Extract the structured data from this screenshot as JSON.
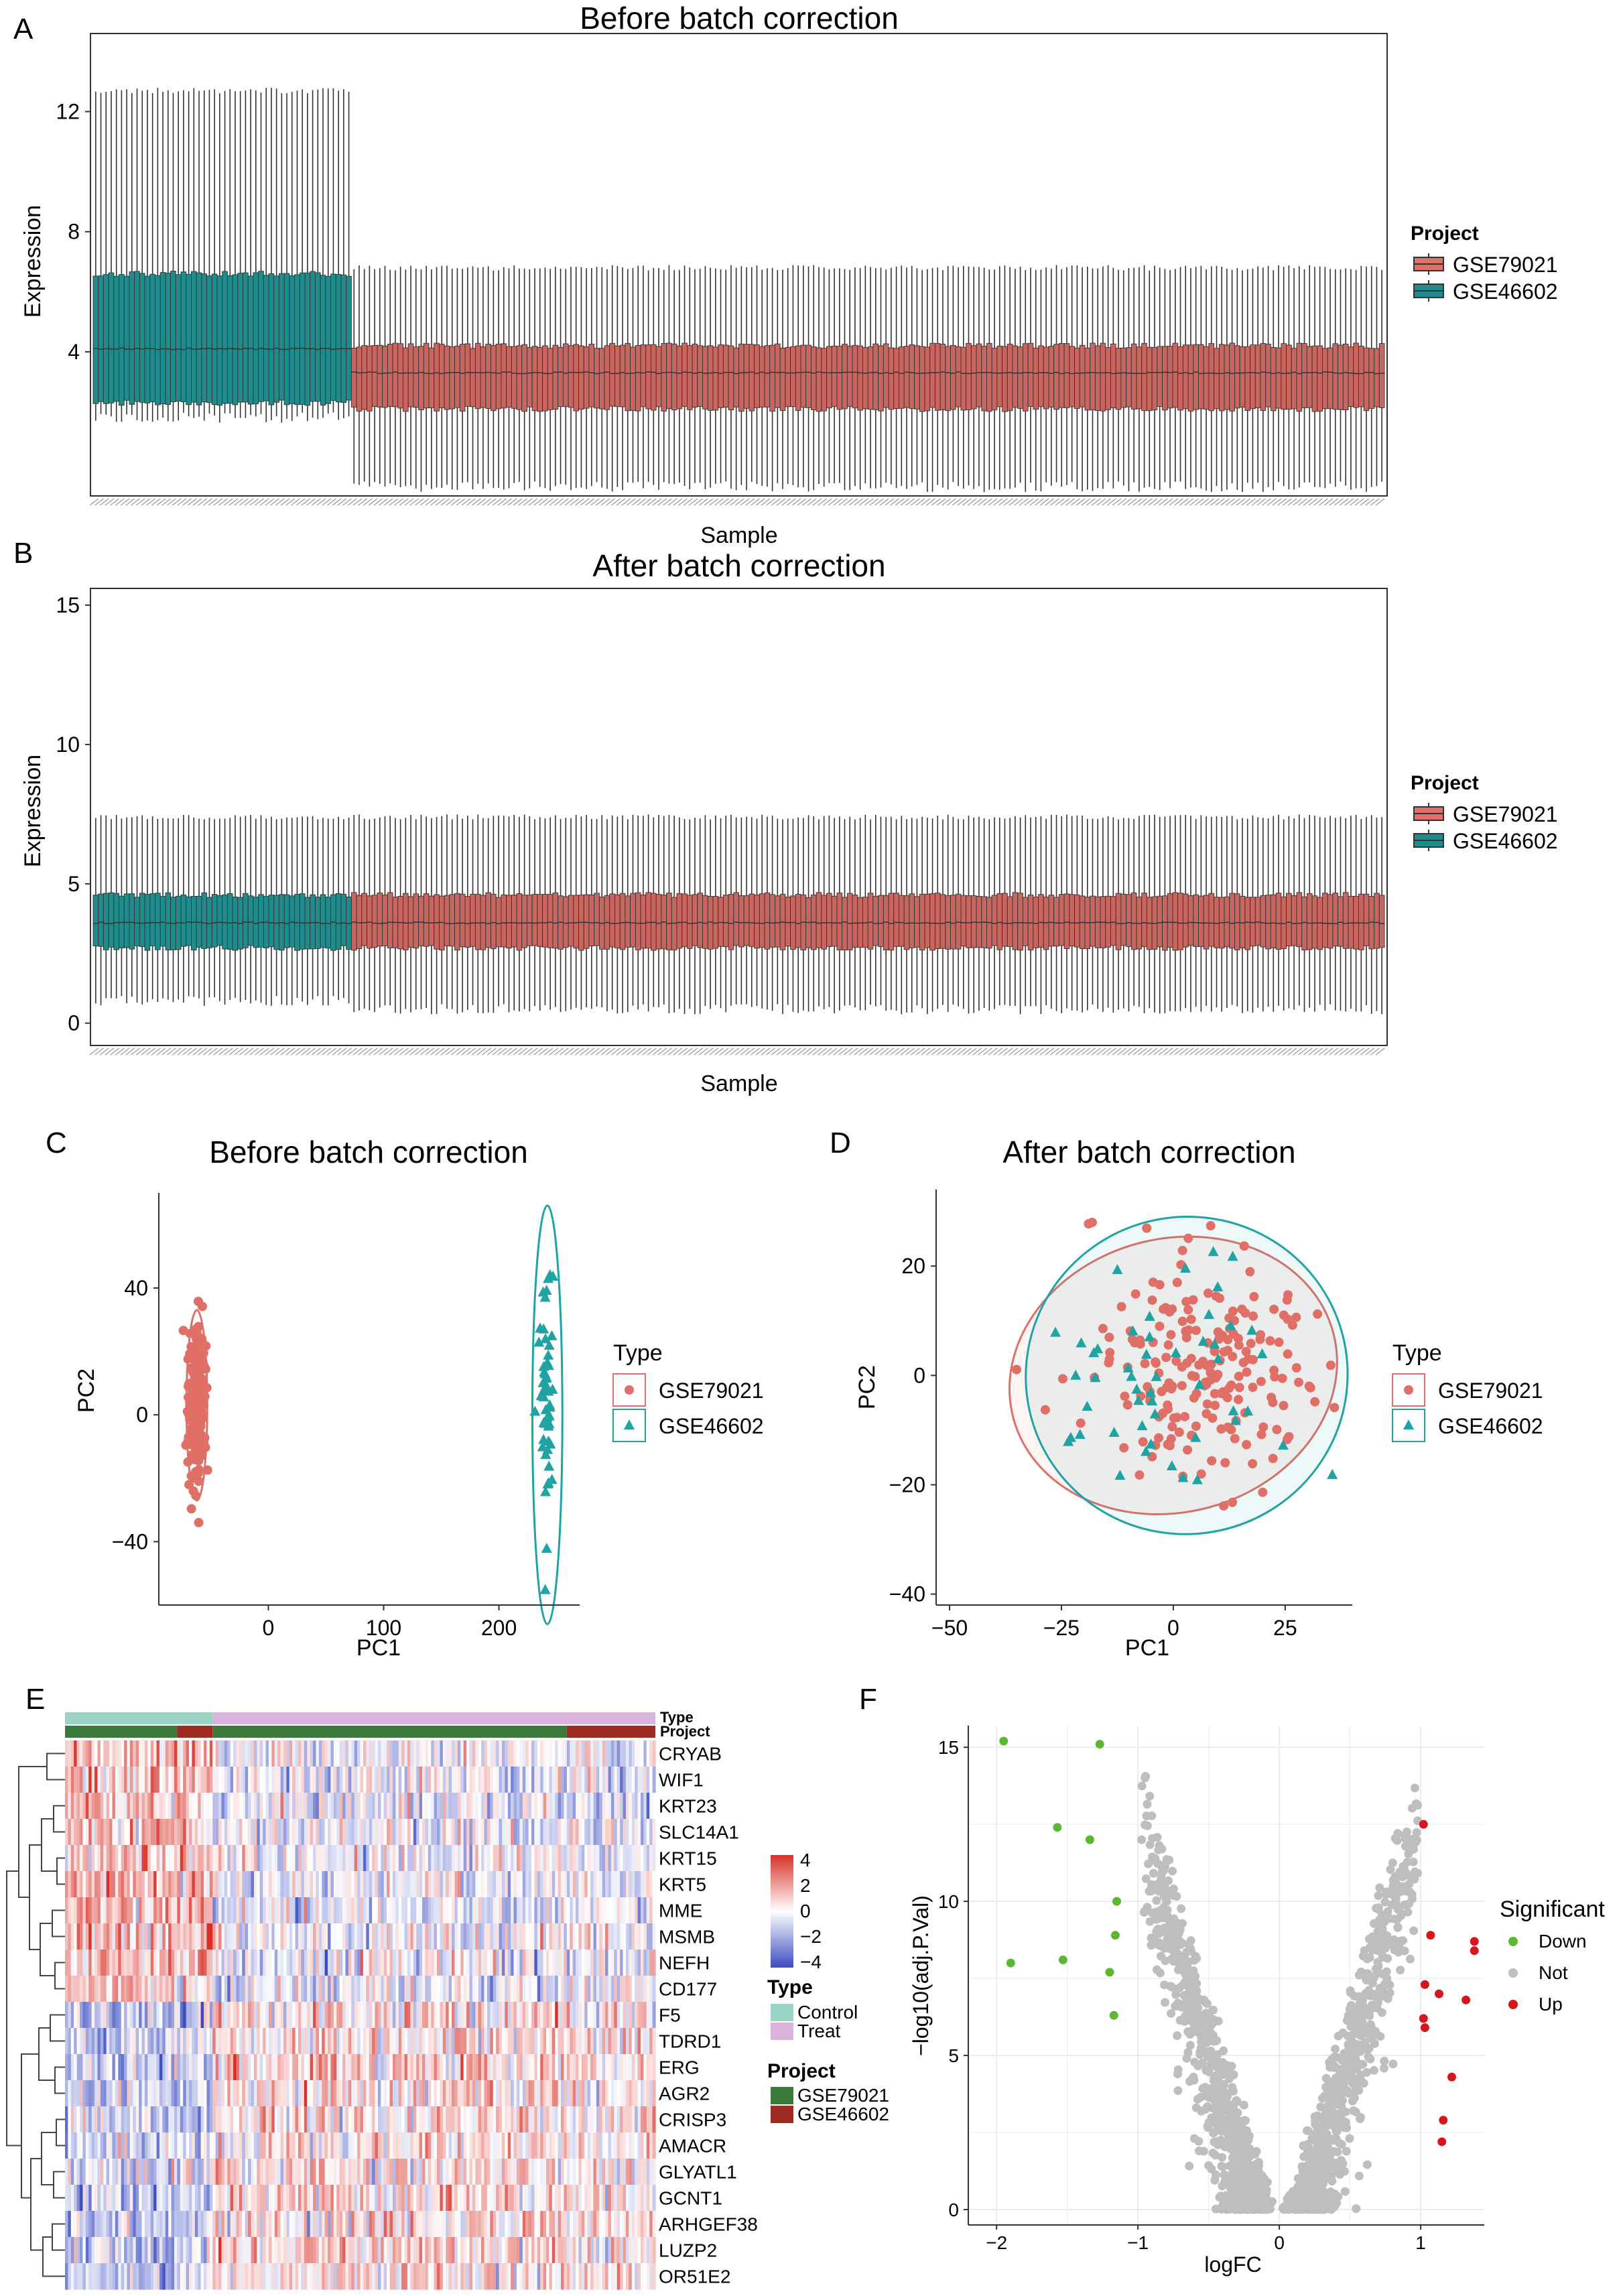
{
  "panels": {
    "A": "A",
    "B": "B",
    "C": "C",
    "D": "D",
    "E": "E",
    "F": "F"
  },
  "colors": {
    "gse79021": "#E07067",
    "gse46602": "#1FA3A3",
    "teal_box": "#1E8C8C",
    "red_box": "#C8655E",
    "control": "#99D4C4",
    "treat": "#D9B3DC",
    "proj1": "#3A7A3A",
    "proj2": "#9E2A22",
    "down": "#5CB832",
    "not": "#BEBEBE",
    "up": "#D8141C"
  },
  "chart_data": [
    {
      "id": "A",
      "type": "boxplot",
      "title": "Before batch correction",
      "xlabel": "Sample",
      "ylabel": "Expression",
      "ylim": [
        -0.8,
        14.6
      ],
      "yticks": [
        4,
        8,
        12
      ],
      "groups": [
        {
          "name": "GSE46602",
          "n_samples": 50,
          "whisker_low": 1.8,
          "q1": 2.3,
          "median": 4.1,
          "q3": 6.6,
          "whisker_high": 12.7
        },
        {
          "name": "GSE79021",
          "n_samples": 200,
          "whisker_low": -0.5,
          "q1": 2.1,
          "median": 3.3,
          "q3": 4.2,
          "whisker_high": 6.8
        }
      ],
      "legend": {
        "title": "Project",
        "items": [
          "GSE79021",
          "GSE46602"
        ]
      }
    },
    {
      "id": "B",
      "type": "boxplot",
      "title": "After batch correction",
      "xlabel": "Sample",
      "ylabel": "Expression",
      "ylim": [
        -0.8,
        15.6
      ],
      "yticks": [
        0,
        5,
        10,
        15
      ],
      "groups": [
        {
          "name": "GSE46602",
          "n_samples": 50,
          "whisker_low": 0.8,
          "q1": 2.7,
          "median": 3.6,
          "q3": 4.6,
          "whisker_high": 7.4
        },
        {
          "name": "GSE79021",
          "n_samples": 200,
          "whisker_low": 0.5,
          "q1": 2.7,
          "median": 3.6,
          "q3": 4.6,
          "whisker_high": 7.4
        }
      ],
      "legend": {
        "title": "Project",
        "items": [
          "GSE79021",
          "GSE46602"
        ]
      }
    },
    {
      "id": "C",
      "type": "scatter",
      "title": "Before batch correction",
      "xlabel": "PC1",
      "ylabel": "PC2",
      "xlim": [
        -95,
        270
      ],
      "ylim": [
        -60,
        70
      ],
      "xticks": [
        0,
        100,
        200
      ],
      "yticks": [
        -40,
        0,
        40
      ],
      "series": [
        {
          "name": "GSE79021",
          "shape": "circle",
          "n": 200,
          "center": [
            -62,
            3
          ],
          "spread": [
            4,
            12
          ],
          "ellipse": {
            "cx": -62,
            "cy": 3,
            "rx": 9,
            "ry": 30
          }
        },
        {
          "name": "GSE46602",
          "shape": "triangle",
          "n": 50,
          "center": [
            242,
            0
          ],
          "spread": [
            3,
            22
          ],
          "ellipse": {
            "cx": 242,
            "cy": 0,
            "rx": 13,
            "ry": 66
          }
        }
      ],
      "legend": {
        "title": "Type",
        "items": [
          "GSE79021",
          "GSE46602"
        ]
      }
    },
    {
      "id": "D",
      "type": "scatter",
      "title": "After batch correction",
      "xlabel": "PC1",
      "ylabel": "PC2",
      "xlim": [
        -53,
        40
      ],
      "ylim": [
        -42,
        34
      ],
      "xticks": [
        -50,
        -25,
        0,
        25
      ],
      "yticks": [
        -40,
        -20,
        0,
        20
      ],
      "series": [
        {
          "name": "GSE79021",
          "shape": "circle",
          "n": 200,
          "center": [
            7,
            1
          ],
          "spread": [
            14,
            11
          ],
          "ellipse": {
            "cx": 0,
            "cy": 0,
            "rx": 37,
            "ry": 25
          }
        },
        {
          "name": "GSE46602",
          "shape": "triangle",
          "n": 50,
          "center": [
            0,
            0
          ],
          "spread": [
            15,
            14
          ],
          "ellipse": {
            "cx": 3,
            "cy": 0,
            "rx": 36,
            "ry": 29
          }
        }
      ],
      "legend": {
        "title": "Type",
        "items": [
          "GSE79021",
          "GSE46602"
        ]
      }
    },
    {
      "id": "E",
      "type": "heatmap",
      "genes": [
        "CRYAB",
        "WIF1",
        "KRT23",
        "SLC14A1",
        "KRT15",
        "KRT5",
        "MME",
        "MSMB",
        "NEFH",
        "CD177",
        "F5",
        "TDRD1",
        "ERG",
        "AGR2",
        "CRISP3",
        "AMACR",
        "GLYATL1",
        "GCNT1",
        "ARHGEF38",
        "LUZP2",
        "OR51E2"
      ],
      "n_control": 50,
      "n_treat": 150,
      "project_split": {
        "control_gse79021": 38,
        "control_gse46602": 12,
        "treat_gse79021": 120,
        "treat_gse46602": 30
      },
      "annotation_labels": [
        "Type",
        "Project"
      ],
      "colorbar": {
        "min": -4,
        "max": 4,
        "ticks": [
          "4",
          "2",
          "0",
          "−2",
          "−4"
        ]
      },
      "legend": {
        "type_title": "Type",
        "type_items": [
          "Control",
          "Treat"
        ],
        "project_title": "Project",
        "project_items": [
          "GSE79021",
          "GSE46602"
        ]
      }
    },
    {
      "id": "F",
      "type": "scatter",
      "subtype": "volcano",
      "xlabel": "logFC",
      "ylabel": "−log10(adj.P.Val)",
      "xlim": [
        -2.2,
        1.45
      ],
      "ylim": [
        -0.5,
        15.7
      ],
      "xticks": [
        "−2",
        "−1",
        "0",
        "1"
      ],
      "yticks": [
        0,
        5,
        10,
        15
      ],
      "down_points": [
        [
          -1.95,
          15.2
        ],
        [
          -1.27,
          15.1
        ],
        [
          -1.57,
          12.4
        ],
        [
          -1.34,
          12.0
        ],
        [
          -1.15,
          10.0
        ],
        [
          -1.16,
          8.9
        ],
        [
          -1.9,
          8.0
        ],
        [
          -1.53,
          8.1
        ],
        [
          -1.2,
          7.7
        ],
        [
          -1.17,
          6.3
        ]
      ],
      "up_points": [
        [
          1.02,
          12.5
        ],
        [
          1.07,
          8.9
        ],
        [
          1.38,
          8.7
        ],
        [
          1.38,
          8.4
        ],
        [
          1.03,
          7.3
        ],
        [
          1.13,
          7.0
        ],
        [
          1.32,
          6.8
        ],
        [
          1.02,
          6.2
        ],
        [
          1.03,
          5.9
        ],
        [
          1.22,
          4.3
        ],
        [
          1.16,
          2.9
        ],
        [
          1.15,
          2.2
        ]
      ],
      "n_not": 1800,
      "legend": {
        "title": "Significant",
        "items": [
          "Down",
          "Not",
          "Up"
        ]
      }
    }
  ]
}
